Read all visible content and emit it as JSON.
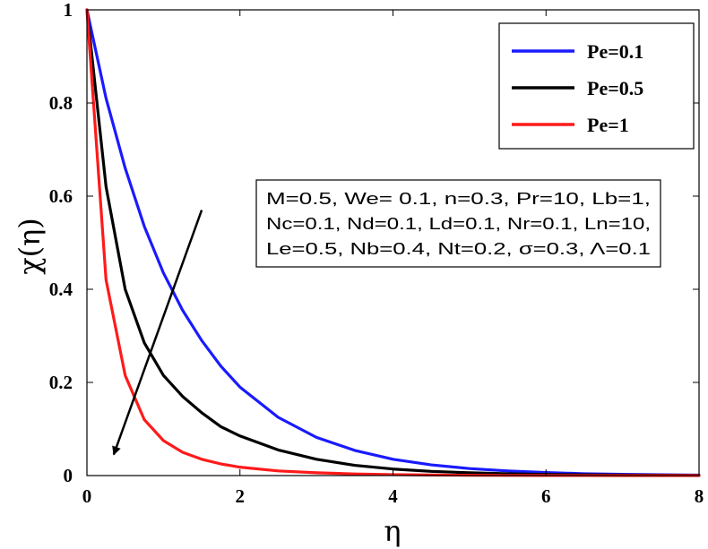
{
  "chart_data": {
    "type": "line",
    "xlabel": "η",
    "ylabel": "χ(η)",
    "xlim": [
      0,
      8
    ],
    "ylim": [
      0,
      1
    ],
    "xticks": [
      0,
      2,
      4,
      6,
      8
    ],
    "yticks": [
      0,
      0.2,
      0.4,
      0.6,
      0.8,
      1
    ],
    "xtick_labels": [
      "0",
      "2",
      "4",
      "6",
      "8"
    ],
    "ytick_labels": [
      "0",
      "0.2",
      "0.4",
      "0.6",
      "0.8",
      "1"
    ],
    "grid": false,
    "legend_position": "top-right",
    "x": [
      0,
      0.25,
      0.5,
      0.75,
      1,
      1.25,
      1.5,
      1.75,
      2,
      2.5,
      3,
      3.5,
      4,
      4.5,
      5,
      5.5,
      6,
      6.5,
      7,
      7.5,
      8
    ],
    "series": [
      {
        "name": "Pe=0.1",
        "color": "#1a1aff",
        "values": [
          1,
          0.81,
          0.66,
          0.535,
          0.435,
          0.355,
          0.29,
          0.235,
          0.19,
          0.125,
          0.082,
          0.054,
          0.035,
          0.023,
          0.015,
          0.01,
          0.0065,
          0.004,
          0.0027,
          0.0018,
          0.001
        ]
      },
      {
        "name": "Pe=0.5",
        "color": "#000000",
        "values": [
          1,
          0.62,
          0.4,
          0.285,
          0.215,
          0.17,
          0.135,
          0.105,
          0.085,
          0.055,
          0.035,
          0.022,
          0.014,
          0.009,
          0.006,
          0.004,
          0.0025,
          0.0017,
          0.0011,
          0.0007,
          0.0004
        ]
      },
      {
        "name": "Pe=1",
        "color": "#ff1a1a",
        "values": [
          1,
          0.42,
          0.215,
          0.12,
          0.075,
          0.05,
          0.035,
          0.025,
          0.018,
          0.01,
          0.006,
          0.0035,
          0.002,
          0.0012,
          0.0007,
          0.0004,
          0.0002,
          0.0001,
          5e-05,
          2e-05,
          0
        ]
      }
    ],
    "annotation": {
      "lines": [
        "M=0.5,  We= 0.1, n=0.3,  Pr=10,  Lb=1,",
        "Nc=0.1, Nd=0.1, Ld=0.1, Nr=0.1, Ln=10,",
        "Le=0.5,  Nb=0.4,  Nt=0.2, σ=0.3, Λ=0.1"
      ]
    },
    "arrow": {
      "from": [
        1.5,
        0.57
      ],
      "to": [
        0.35,
        0.045
      ]
    }
  }
}
